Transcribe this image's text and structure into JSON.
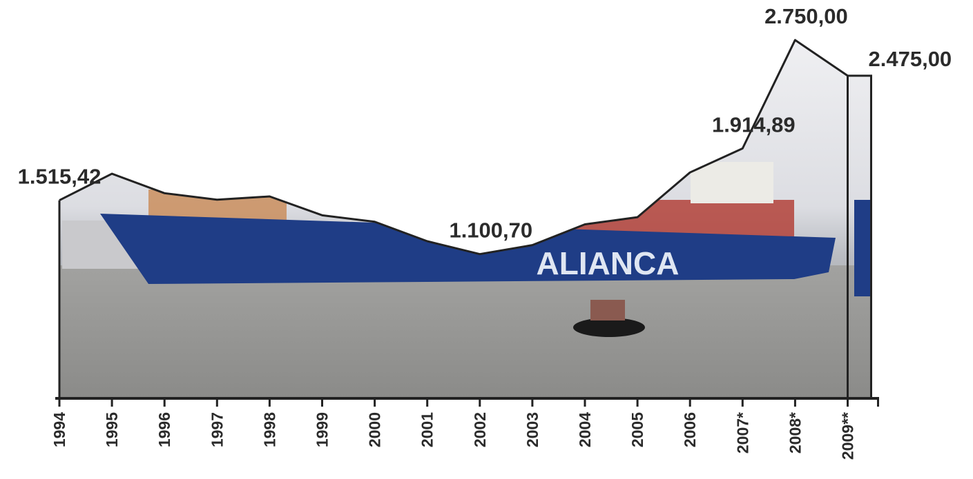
{
  "chart_data": {
    "type": "area",
    "categories": [
      "1994",
      "1995",
      "1996",
      "1997",
      "1998",
      "1999",
      "2000",
      "2001",
      "2002",
      "2003",
      "2004",
      "2005",
      "2006",
      "2007*",
      "2008*",
      "2009**"
    ],
    "values": [
      1515.42,
      1720,
      1570,
      1520,
      1545,
      1400,
      1350,
      1200,
      1100.7,
      1170,
      1330,
      1385,
      1730,
      1914.89,
      2750,
      2475
    ],
    "value_labels": [
      "1.515,42",
      null,
      null,
      null,
      null,
      null,
      null,
      null,
      "1.100,70",
      null,
      null,
      null,
      null,
      "1.914,89",
      "2.750,00",
      "2.475,00"
    ],
    "ylim": [
      0,
      3000
    ]
  }
}
